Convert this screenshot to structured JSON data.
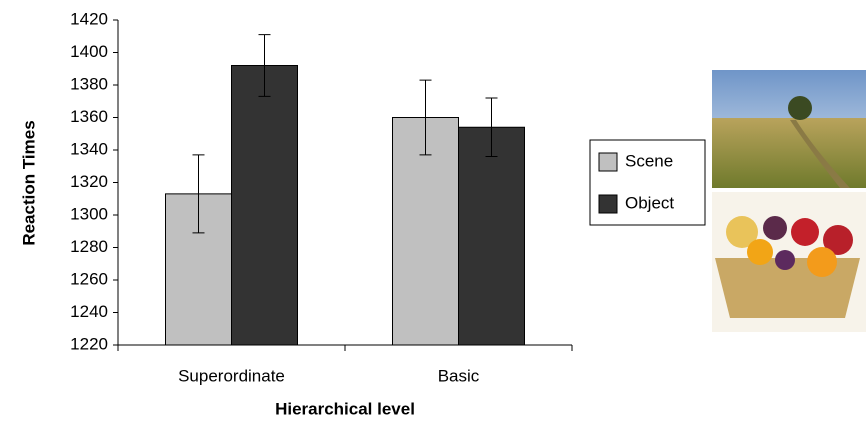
{
  "chart_data": {
    "type": "bar",
    "y_label": "Reaction Times",
    "x_label": "Hierarchical level",
    "categories": [
      "Superordinate",
      "Basic"
    ],
    "series": [
      {
        "name": "Scene",
        "color": "#c0c0c0",
        "values": [
          1313,
          1360
        ],
        "errors": [
          24,
          23
        ]
      },
      {
        "name": "Object",
        "color": "#333333",
        "values": [
          1392,
          1354
        ],
        "errors": [
          19,
          18
        ]
      }
    ],
    "ylim": [
      1220,
      1420
    ],
    "yticks": [
      1220,
      1240,
      1260,
      1280,
      1300,
      1320,
      1340,
      1360,
      1380,
      1400,
      1420
    ]
  }
}
